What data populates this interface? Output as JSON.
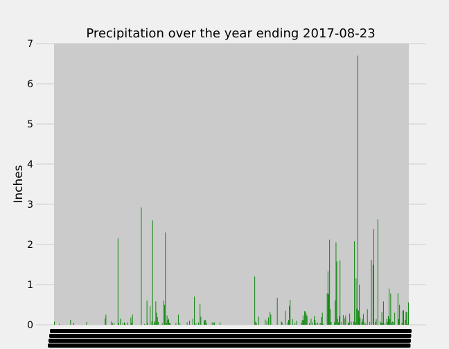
{
  "chart_data": {
    "type": "bar",
    "title": "Precipitation over the year ending 2017-08-23",
    "xlabel": "",
    "ylabel": "Inches",
    "ylim": [
      0,
      7
    ],
    "yticks": [
      0,
      1,
      2,
      3,
      4,
      5,
      6,
      7
    ],
    "grid": true,
    "bar_color": "#008000",
    "plot_background": "#cbcbcb",
    "figure_background": "#f0f0f0",
    "x_tick_labels_note": "Dense overlapping date tick labels (unreadable)",
    "values": [
      0.08,
      0,
      0,
      0,
      0,
      0,
      0.02,
      0,
      0,
      0,
      0,
      0,
      0,
      0,
      0,
      0,
      0,
      0,
      0,
      0,
      0.12,
      0,
      0,
      0,
      0.05,
      0,
      0,
      0,
      0,
      0,
      0,
      0,
      0,
      0,
      0,
      0,
      0,
      0,
      0,
      0,
      0.07,
      0,
      0,
      0,
      0,
      0,
      0,
      0,
      0,
      0,
      0,
      0,
      0,
      0,
      0,
      0,
      0,
      0,
      0,
      0,
      0,
      0,
      0,
      0.16,
      0.25,
      0,
      0,
      0,
      0,
      0,
      0,
      0.08,
      0.04,
      0,
      0.05,
      0,
      0,
      0,
      0,
      2.15,
      0.04,
      0,
      0.15,
      0,
      0,
      0.05,
      0,
      0.06,
      0.03,
      0,
      0,
      0.06,
      0,
      0,
      0,
      0.18,
      0.05,
      0.25,
      0,
      0,
      0,
      0,
      0,
      0,
      0,
      0,
      0,
      0,
      2.92,
      0,
      0,
      0,
      0.02,
      0,
      0,
      0.6,
      0.04,
      0,
      0,
      0.46,
      0,
      0.08,
      2.6,
      0,
      0.09,
      0.05,
      0.58,
      0.3,
      0.19,
      0.07,
      0,
      0,
      0,
      0,
      0.04,
      0,
      0.6,
      0.5,
      2.3,
      0.05,
      0.23,
      0.12,
      0.15,
      0.05,
      0.04,
      0,
      0,
      0,
      0,
      0,
      0,
      0.04,
      0,
      0,
      0.25,
      0,
      0.04,
      0,
      0,
      0,
      0,
      0,
      0,
      0,
      0,
      0.06,
      0,
      0,
      0.1,
      0,
      0,
      0,
      0.15,
      0,
      0.7,
      0,
      0.04,
      0,
      0,
      0.06,
      0,
      0.52,
      0.2,
      0,
      0,
      0,
      0.12,
      0.1,
      0.12,
      0.04,
      0,
      0,
      0,
      0,
      0,
      0,
      0.06,
      0,
      0.05,
      0.06,
      0,
      0,
      0,
      0,
      0,
      0,
      0.06,
      0,
      0,
      0,
      0,
      0,
      0,
      0,
      0,
      0,
      0,
      0,
      0,
      0,
      0,
      0,
      0,
      0,
      0,
      0,
      0,
      0,
      0,
      0,
      0,
      0,
      0,
      0,
      0,
      0,
      0,
      0,
      0,
      0,
      0,
      0,
      0,
      0,
      0,
      0,
      0,
      0,
      0,
      1.2,
      0.08,
      0.05,
      0,
      0,
      0.2,
      0,
      0,
      0,
      0,
      0,
      0,
      0,
      0.13,
      0,
      0.1,
      0,
      0.18,
      0,
      0.31,
      0.25,
      0,
      0,
      0,
      0,
      0,
      0,
      0,
      0.67,
      0,
      0,
      0,
      0,
      0.08,
      0.06,
      0,
      0,
      0,
      0.35,
      0,
      0,
      0.06,
      0.12,
      0.47,
      0.62,
      0,
      0,
      0.14,
      0,
      0,
      0.05,
      0,
      0.1,
      0,
      0,
      0,
      0,
      0,
      0.05,
      0.12,
      0.23,
      0.11,
      0.34,
      0.33,
      0.27,
      0.22,
      0,
      0,
      0.04,
      0,
      0.15,
      0,
      0.06,
      0,
      0.22,
      0.12,
      0.03,
      0,
      0.06,
      0,
      0.04,
      0,
      0.05,
      0.19,
      0.3,
      0.02,
      0,
      0,
      0,
      0,
      0.78,
      1.33,
      0.77,
      2.12,
      0.39,
      0.07,
      0,
      0,
      0,
      0.06,
      0.61,
      2.05,
      1.58,
      0.15,
      0.06,
      0.22,
      1.6,
      0,
      0.07,
      0,
      0.24,
      0,
      0.16,
      0.23,
      0,
      0,
      0.06,
      0.04,
      0.28,
      0,
      0.08,
      0,
      0,
      0.08,
      2.08,
      0.06,
      1.15,
      0.4,
      6.7,
      0.35,
      1.0,
      0.18,
      0,
      0.07,
      0.14,
      0.27,
      0,
      0.06,
      0.02,
      0,
      0.39,
      0,
      0,
      0.07,
      0,
      1.62,
      0,
      1.49,
      2.38,
      0,
      0.07,
      0.14,
      0,
      2.63,
      0,
      0,
      0.08,
      0.05,
      0.32,
      0.05,
      0.58,
      0,
      0.04,
      0,
      0.15,
      0.08,
      0.22,
      0.9,
      0.14,
      0.78,
      0.04,
      0.08,
      0.07,
      0,
      0.3,
      0,
      0,
      0,
      0.79,
      0.14,
      0.5,
      0,
      0,
      0.05,
      0.35,
      0.36,
      0,
      0.12,
      0.32,
      0.31,
      0.02,
      0.56
    ]
  }
}
